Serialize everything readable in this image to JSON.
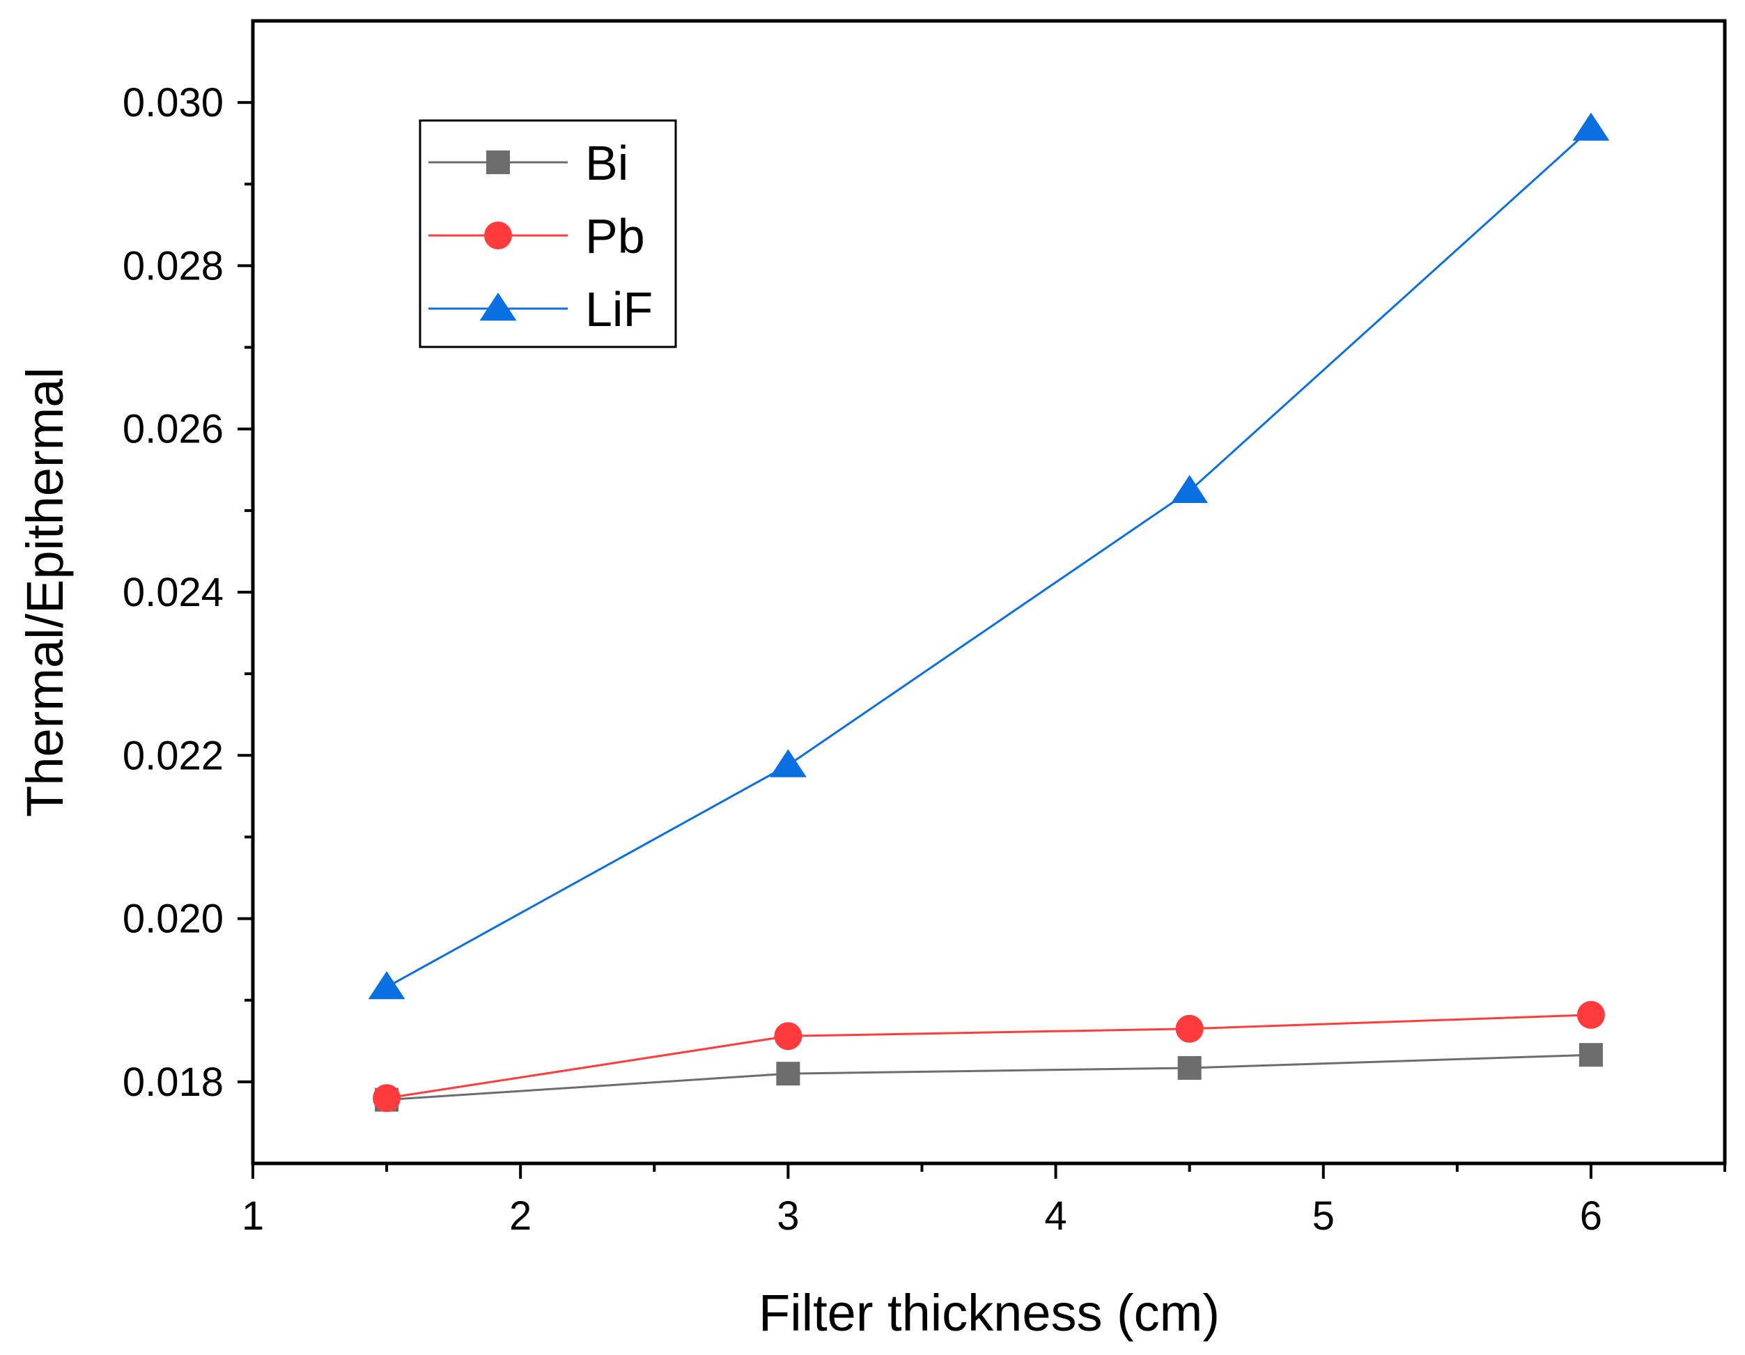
{
  "chart_data": {
    "type": "line",
    "xlabel": "Filter thickness (cm)",
    "ylabel": "Thermal/Epithermal",
    "xlim": [
      1,
      6.5
    ],
    "ylim": [
      0.017,
      0.031
    ],
    "xticks": [
      1,
      2,
      3,
      4,
      5,
      6
    ],
    "xtick_labels": [
      "1",
      "2",
      "3",
      "4",
      "5",
      "6"
    ],
    "yticks": [
      0.018,
      0.02,
      0.022,
      0.024,
      0.026,
      0.028,
      0.03
    ],
    "ytick_labels": [
      "0.018",
      "0.020",
      "0.022",
      "0.024",
      "0.026",
      "0.028",
      "0.030"
    ],
    "grid": false,
    "legend_position": "top-left",
    "x": [
      1.5,
      3,
      4.5,
      6
    ],
    "series": [
      {
        "name": "Bi",
        "marker": "square",
        "color": "#6d6d6d",
        "values": [
          0.01778,
          0.0181,
          0.01817,
          0.01833
        ]
      },
      {
        "name": "Pb",
        "marker": "circle",
        "color": "#ff3b3b",
        "values": [
          0.0178,
          0.01856,
          0.01865,
          0.01882
        ]
      },
      {
        "name": "LiF",
        "marker": "triangle",
        "color": "#0a6fe0",
        "values": [
          0.01916,
          0.02188,
          0.02524,
          0.02968
        ]
      }
    ]
  }
}
